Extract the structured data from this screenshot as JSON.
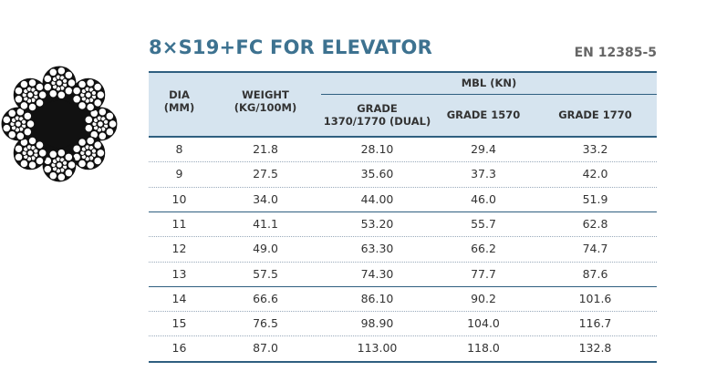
{
  "header": {
    "title": "8×S19+FC FOR ELEVATOR",
    "standard": "EN 12385-5"
  },
  "table": {
    "columns": {
      "dia": [
        "DIA",
        "(MM)"
      ],
      "weight": [
        "WEIGHT",
        "(KG/100M)"
      ],
      "mbl": "MBL (KN)",
      "grades": [
        [
          "GRADE",
          "1370/1770 (DUAL)"
        ],
        [
          "GRADE 1570"
        ],
        [
          "GRADE 1770"
        ]
      ]
    },
    "rows": [
      [
        "8",
        "21.8",
        "28.10",
        "29.4",
        "33.2"
      ],
      [
        "9",
        "27.5",
        "35.60",
        "37.3",
        "42.0"
      ],
      [
        "10",
        "34.0",
        "44.00",
        "46.0",
        "51.9"
      ],
      [
        "11",
        "41.1",
        "53.20",
        "55.7",
        "62.8"
      ],
      [
        "12",
        "49.0",
        "63.30",
        "66.2",
        "74.7"
      ],
      [
        "13",
        "57.5",
        "74.30",
        "77.7",
        "87.6"
      ],
      [
        "14",
        "66.6",
        "86.10",
        "90.2",
        "101.6"
      ],
      [
        "15",
        "76.5",
        "98.90",
        "104.0",
        "116.7"
      ],
      [
        "16",
        "87.0",
        "113.00",
        "118.0",
        "132.8"
      ]
    ]
  }
}
